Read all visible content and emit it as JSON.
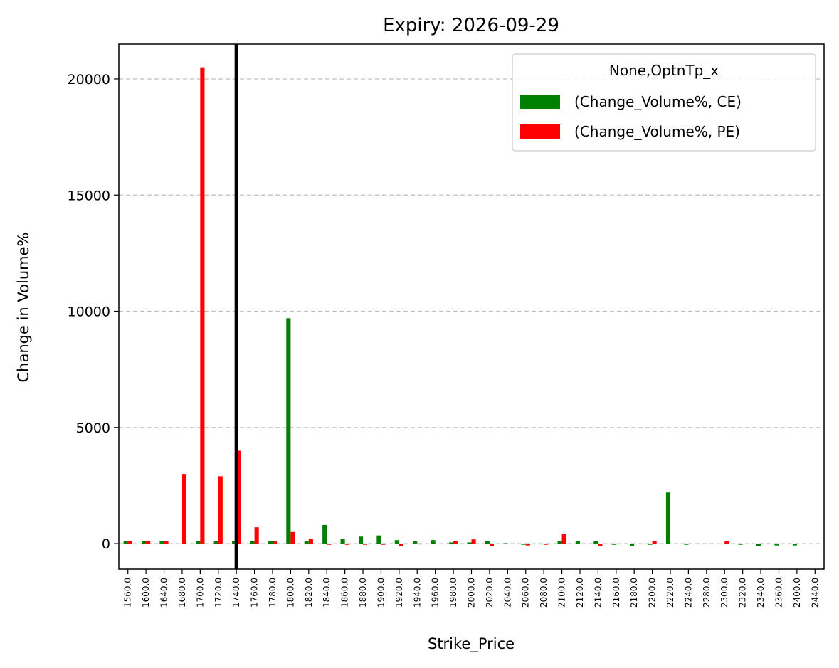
{
  "chart_data": {
    "type": "bar",
    "title": "Expiry: 2026-09-29",
    "xlabel": "Strike_Price",
    "ylabel": "Change in Volume%",
    "ylim": [
      -1100,
      21500
    ],
    "yticks": [
      0,
      5000,
      10000,
      15000,
      20000
    ],
    "grid": "horizontal dashed",
    "legend": {
      "title": "None,OptnTp_x",
      "placement": "top-right"
    },
    "highlight_line": {
      "category": "1740.0",
      "color": "#000000"
    },
    "categories": [
      "1560.0",
      "1600.0",
      "1640.0",
      "1680.0",
      "1700.0",
      "1720.0",
      "1740.0",
      "1760.0",
      "1780.0",
      "1800.0",
      "1820.0",
      "1840.0",
      "1860.0",
      "1880.0",
      "1900.0",
      "1920.0",
      "1940.0",
      "1960.0",
      "1980.0",
      "2000.0",
      "2020.0",
      "2040.0",
      "2060.0",
      "2080.0",
      "2100.0",
      "2120.0",
      "2140.0",
      "2160.0",
      "2180.0",
      "2200.0",
      "2220.0",
      "2240.0",
      "2280.0",
      "2300.0",
      "2320.0",
      "2340.0",
      "2360.0",
      "2400.0",
      "2440.0"
    ],
    "series": [
      {
        "name": "(Change_Volume%, CE)",
        "color": "#008000",
        "values": [
          100,
          100,
          100,
          0,
          100,
          100,
          100,
          100,
          100,
          9700,
          100,
          800,
          200,
          300,
          350,
          150,
          100,
          150,
          50,
          50,
          100,
          20,
          -50,
          -30,
          100,
          120,
          100,
          -50,
          -100,
          -50,
          2200,
          -50,
          0,
          -20,
          -50,
          -100,
          -80,
          -80,
          0
        ]
      },
      {
        "name": "(Change_Volume%, PE)",
        "color": "#ff0000",
        "values": [
          100,
          100,
          100,
          3000,
          20500,
          2900,
          4000,
          700,
          100,
          500,
          200,
          -50,
          -50,
          -50,
          -50,
          -100,
          -30,
          0,
          100,
          180,
          -100,
          0,
          -80,
          -50,
          400,
          0,
          -100,
          -30,
          0,
          100,
          0,
          0,
          0,
          100,
          0,
          0,
          0,
          0,
          0
        ]
      }
    ]
  }
}
